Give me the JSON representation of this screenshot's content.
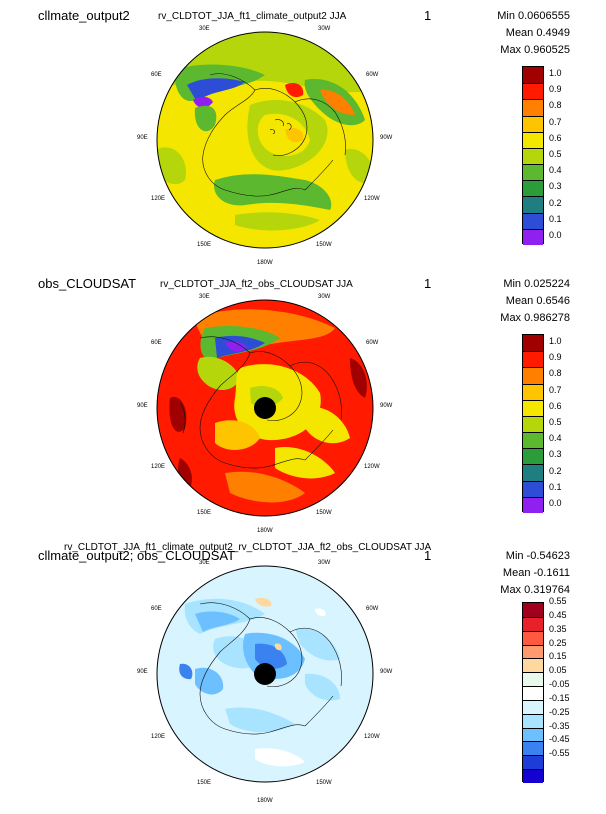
{
  "panels": [
    {
      "name": "cllmate_output2",
      "title": "rv_CLDTOT_JJA_ft1_climate_output2  JJA",
      "index": "1",
      "stats": {
        "min": "Min 0.0606555",
        "mean": "Mean 0.4949",
        "max": "Max 0.960525"
      },
      "colorbar": {
        "labels": [
          "1.0",
          "0.9",
          "0.8",
          "0.7",
          "0.6",
          "0.5",
          "0.4",
          "0.3",
          "0.2",
          "0.1",
          "0.0"
        ],
        "colors": [
          "#a00000",
          "#ff1a00",
          "#ff7f00",
          "#ffc400",
          "#f5e600",
          "#b4d60a",
          "#5cb82e",
          "#2a9c3a",
          "#1f7f80",
          "#2d4dd6",
          "#9020f0"
        ]
      }
    },
    {
      "name": "obs_CLOUDSAT",
      "title": "rv_CLDTOT_JJA_ft2_obs_CLOUDSAT  JJA",
      "index": "1",
      "stats": {
        "min": "Min 0.025224",
        "mean": "Mean 0.6546",
        "max": "Max 0.986278"
      },
      "colorbar": {
        "labels": [
          "1.0",
          "0.9",
          "0.8",
          "0.7",
          "0.6",
          "0.5",
          "0.4",
          "0.3",
          "0.2",
          "0.1",
          "0.0"
        ],
        "colors": [
          "#a00000",
          "#ff1a00",
          "#ff7f00",
          "#ffc400",
          "#f5e600",
          "#b4d60a",
          "#5cb82e",
          "#2a9c3a",
          "#1f7f80",
          "#2d4dd6",
          "#9020f0"
        ]
      }
    },
    {
      "name": "cllmate_output2; obs_CLOUDSAT",
      "title": "rv_CLDTOT_JJA_ft1_climate_output2_rv_CLDTOT_JJA_ft2_obs_CLOUDSAT  JJA",
      "index": "1",
      "stats": {
        "min": "Min -0.54623",
        "mean": "Mean -0.1611",
        "max": "Max 0.319764"
      },
      "colorbar": {
        "labels": [
          "0.55",
          "0.45",
          "0.35",
          "0.25",
          "0.15",
          "0.05",
          "-0.05",
          "-0.15",
          "-0.25",
          "-0.35",
          "-0.45",
          "-0.55"
        ],
        "colors": [
          "#a0001e",
          "#e8202a",
          "#ff5a40",
          "#ff9a70",
          "#ffd8a0",
          "#eafaea",
          "#ffffff",
          "#d8f4ff",
          "#a8e4ff",
          "#6cc0ff",
          "#3a82f0",
          "#1e3cd8",
          "#1400d0"
        ]
      }
    }
  ],
  "longitudes": [
    "30E",
    "30W",
    "60E",
    "60W",
    "90E",
    "90W",
    "120E",
    "120W",
    "150E",
    "150W",
    "180W"
  ]
}
